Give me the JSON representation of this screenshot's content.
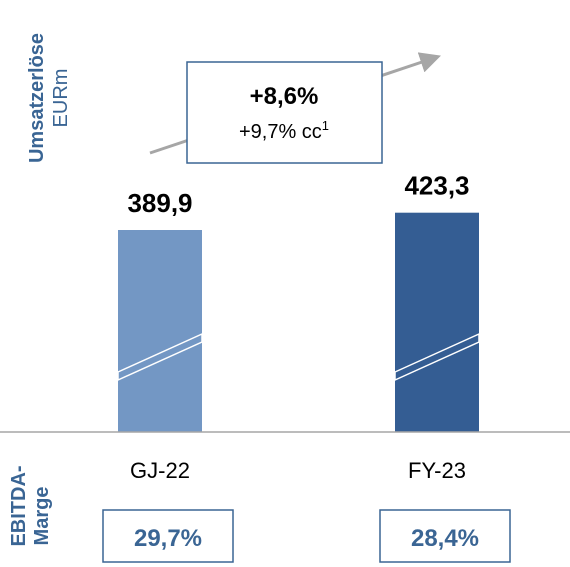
{
  "chart_data": {
    "type": "bar",
    "y_axis_title": "Umsatzerlöse",
    "y_axis_unit": "EURm",
    "categories": [
      "GJ-22",
      "FY-23"
    ],
    "values": [
      389.9,
      423.3
    ],
    "value_labels": [
      "389,9",
      "423,3"
    ],
    "bar_colors": [
      "#7397c4",
      "#345d93"
    ],
    "growth": {
      "main": "+8,6%",
      "sub": "+9,7% cc",
      "sup": "1"
    },
    "margin_label": "EBITDA-Marge",
    "margin_label_lines": [
      "EBITDA-",
      "Marge"
    ],
    "margins": [
      "29,7%",
      "28,4%"
    ],
    "axis_break": true
  },
  "colors": {
    "accent": "#3a6594",
    "text": "#000000",
    "box_border": "#3a6594",
    "arrow": "#a6a6a6",
    "axis": "#a6a6a6"
  }
}
